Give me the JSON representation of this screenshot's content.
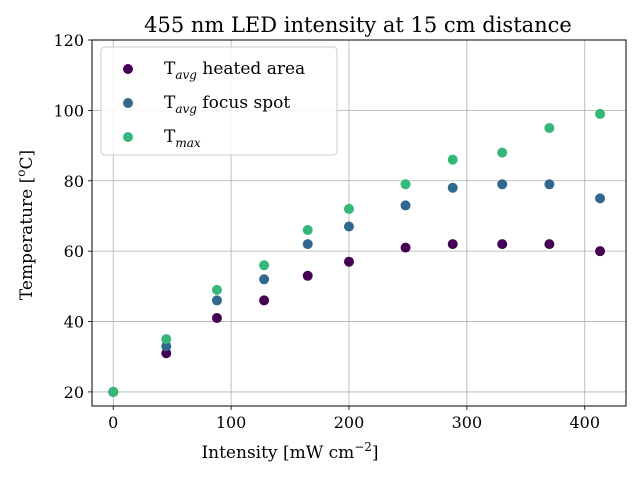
{
  "chart_data": {
    "type": "scatter",
    "title": "455 nm LED intensity at 15 cm distance",
    "xlabel": {
      "main": "Intensity [mW cm",
      "sup": "−2",
      "close": "]"
    },
    "ylabel": {
      "main": "Temperature [",
      "sup": "o",
      "close": "C]"
    },
    "xlim": [
      -18,
      435
    ],
    "ylim": [
      16,
      120
    ],
    "xticks": [
      0,
      100,
      200,
      300,
      400
    ],
    "yticks": [
      20,
      40,
      60,
      80,
      100,
      120
    ],
    "grid": true,
    "legend_position": "top-left",
    "x": [
      0,
      45,
      88,
      128,
      165,
      200,
      248,
      288,
      330,
      370,
      413
    ],
    "series": [
      {
        "name": {
          "base": "T",
          "sub": "avg",
          "rest": " heated area"
        },
        "color": "#440154",
        "values": [
          20,
          31,
          41,
          46,
          53,
          57,
          61,
          62,
          62,
          62,
          60
        ]
      },
      {
        "name": {
          "base": "T",
          "sub": "avg",
          "rest": " focus spot"
        },
        "color": "#31688e",
        "values": [
          20,
          33,
          46,
          52,
          62,
          67,
          73,
          78,
          79,
          79,
          75
        ]
      },
      {
        "name": {
          "base": "T",
          "sub": "max",
          "rest": ""
        },
        "color": "#35b779",
        "values": [
          20,
          35,
          49,
          56,
          66,
          72,
          79,
          86,
          88,
          95,
          99
        ]
      }
    ]
  }
}
